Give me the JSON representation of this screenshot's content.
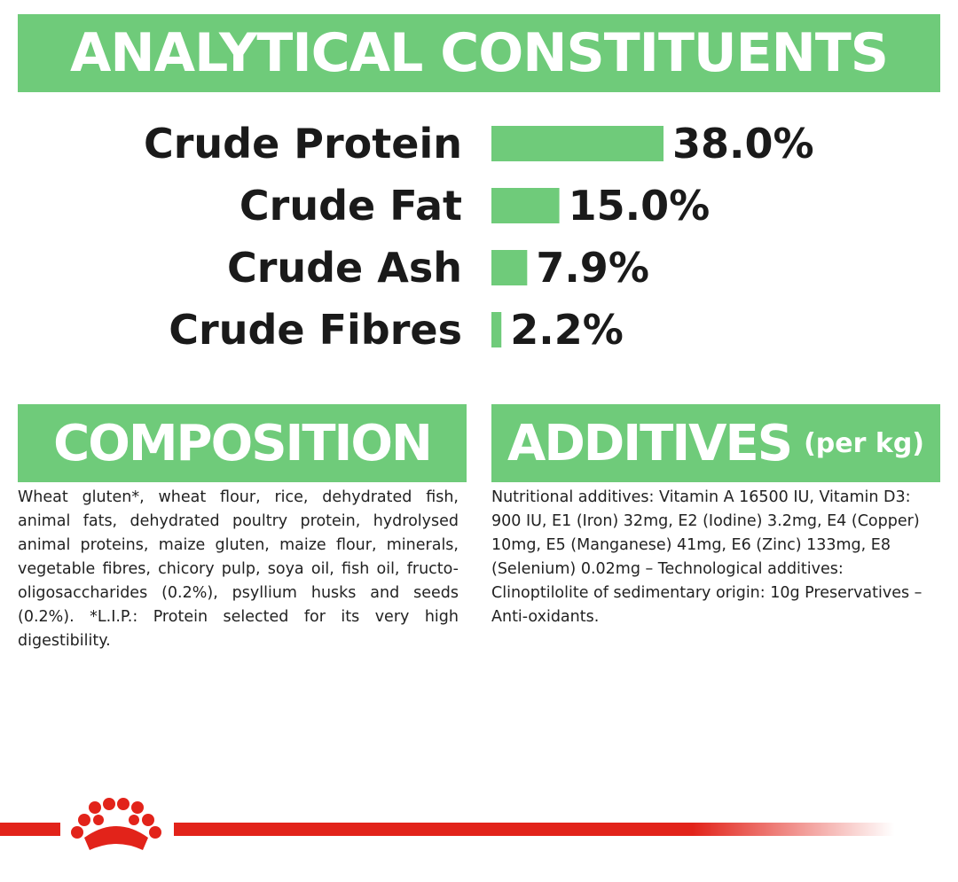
{
  "headings": {
    "analytical": "ANALYTICAL CONSTITUENTS",
    "composition": "COMPOSITION",
    "additives": "ADDITIVES",
    "additives_sub": "(per kg)"
  },
  "colors": {
    "accent_green": "#6fcb7a",
    "brand_red": "#e2231a",
    "text_dark": "#1a1a1a"
  },
  "chart_data": {
    "type": "bar",
    "orientation": "horizontal",
    "categories": [
      "Crude Protein",
      "Crude Fat",
      "Crude Ash",
      "Crude Fibres"
    ],
    "values": [
      38.0,
      15.0,
      7.9,
      2.2
    ],
    "value_labels": [
      "38.0%",
      "15.0%",
      "7.9%",
      "2.2%"
    ],
    "unit": "%",
    "xlim": [
      0,
      38.0
    ],
    "grid": false,
    "legend": "none",
    "bar_color": "#6fcb7a"
  },
  "composition": {
    "text": "Wheat gluten*, wheat flour, rice, dehydrated fish, animal fats, dehydrated poultry protein, hydrolysed animal proteins, maize gluten, maize flour, minerals, vegetable fibres, chicory pulp, soya oil, fish oil, fructo-oligosaccharides (0.2%), psyllium husks and seeds (0.2%). *L.I.P.: Protein selected for its very high digestibility."
  },
  "additives": {
    "text": "Nutritional additives: Vitamin A 16500 IU, Vitamin D3: 900 IU, E1 (Iron) 32mg, E2 (Iodine) 3.2mg, E4 (Copper) 10mg, E5 (Manganese) 41mg, E6 (Zinc) 133mg, E8 (Selenium) 0.02mg – Technological additives: Clinoptilolite of sedimentary origin: 10g Preservatives – Anti-oxidants."
  },
  "footer": {
    "logo_icon": "crown-logo-icon"
  }
}
